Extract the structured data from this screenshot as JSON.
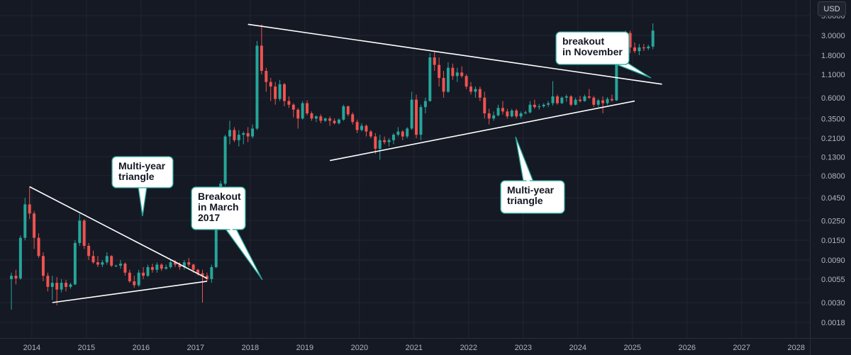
{
  "currency": "USD",
  "colors": {
    "background": "#151924",
    "grid": "#222633",
    "up": "#26a69a",
    "down": "#ef5350",
    "line": "#ffffff",
    "axis_text": "#b2b5be",
    "callout_bg": "#ffffff",
    "callout_border": "#26a69a"
  },
  "annotations": [
    {
      "lines": [
        "Multi-year",
        "triangle"
      ]
    },
    {
      "lines": [
        "Breakout",
        "in March",
        "2017"
      ]
    },
    {
      "lines": [
        "Multi-year",
        "triangle"
      ]
    },
    {
      "lines": [
        "breakout",
        "in November"
      ]
    }
  ],
  "chart_data": {
    "type": "candlestick",
    "interval": "1 month",
    "y_scale": "log",
    "ylim": [
      0.0012,
      7.5
    ],
    "xlim": [
      "2013-06",
      "2028-04"
    ],
    "grid": true,
    "legend": "none",
    "x_ticks": [
      "2014",
      "2015",
      "2016",
      "2017",
      "2018",
      "2019",
      "2020",
      "2021",
      "2022",
      "2023",
      "2024",
      "2025",
      "2026",
      "2027",
      "2028"
    ],
    "y_ticks": [
      "5.0000",
      "3.0000",
      "1.8000",
      "1.1000",
      "0.6000",
      "0.3500",
      "0.2100",
      "0.1300",
      "0.0800",
      "0.0450",
      "0.0250",
      "0.0150",
      "0.0090",
      "0.0055",
      "0.0030",
      "0.0018"
    ],
    "series": [
      {
        "start": "2013-08",
        "values": [
          [
            0.0055,
            0.0065,
            0.0025,
            0.006
          ],
          [
            0.006,
            0.007,
            0.0048,
            0.0056
          ],
          [
            0.0056,
            0.017,
            0.0054,
            0.016
          ],
          [
            0.016,
            0.045,
            0.015,
            0.038
          ],
          [
            0.038,
            0.06,
            0.026,
            0.03
          ],
          [
            0.03,
            0.032,
            0.012,
            0.016
          ],
          [
            0.016,
            0.018,
            0.0095,
            0.01
          ],
          [
            0.01,
            0.011,
            0.0052,
            0.006
          ],
          [
            0.006,
            0.0065,
            0.004,
            0.0045
          ],
          [
            0.0045,
            0.006,
            0.0032,
            0.005
          ],
          [
            0.005,
            0.0058,
            0.0028,
            0.0042
          ],
          [
            0.0042,
            0.0055,
            0.0039,
            0.005
          ],
          [
            0.005,
            0.0054,
            0.004,
            0.0045
          ],
          [
            0.0045,
            0.005,
            0.0043,
            0.0048
          ],
          [
            0.0048,
            0.015,
            0.0047,
            0.014
          ],
          [
            0.014,
            0.03,
            0.013,
            0.025
          ],
          [
            0.025,
            0.026,
            0.012,
            0.013
          ],
          [
            0.013,
            0.014,
            0.009,
            0.01
          ],
          [
            0.01,
            0.0115,
            0.0082,
            0.0085
          ],
          [
            0.0085,
            0.01,
            0.0075,
            0.008
          ],
          [
            0.008,
            0.009,
            0.0075,
            0.0085
          ],
          [
            0.0085,
            0.011,
            0.008,
            0.01
          ],
          [
            0.01,
            0.0102,
            0.0075,
            0.0078
          ],
          [
            0.0078,
            0.008,
            0.0075,
            0.0078
          ],
          [
            0.0078,
            0.009,
            0.0072,
            0.0082
          ],
          [
            0.0082,
            0.0085,
            0.006,
            0.0065
          ],
          [
            0.0065,
            0.007,
            0.005,
            0.0052
          ],
          [
            0.0052,
            0.006,
            0.0044,
            0.0047
          ],
          [
            0.0047,
            0.007,
            0.0045,
            0.0065
          ],
          [
            0.0065,
            0.0075,
            0.0055,
            0.006
          ],
          [
            0.006,
            0.008,
            0.0058,
            0.0075
          ],
          [
            0.0075,
            0.0082,
            0.0065,
            0.007
          ],
          [
            0.007,
            0.0085,
            0.0065,
            0.008
          ],
          [
            0.008,
            0.0083,
            0.0068,
            0.0072
          ],
          [
            0.0072,
            0.008,
            0.007,
            0.0075
          ],
          [
            0.0075,
            0.009,
            0.0072,
            0.0085
          ],
          [
            0.0085,
            0.009,
            0.0075,
            0.008
          ],
          [
            0.008,
            0.0085,
            0.007,
            0.0075
          ],
          [
            0.0075,
            0.009,
            0.007,
            0.0085
          ],
          [
            0.0085,
            0.0095,
            0.0075,
            0.008
          ],
          [
            0.008,
            0.0082,
            0.0065,
            0.007
          ],
          [
            0.007,
            0.0072,
            0.006,
            0.0064
          ],
          [
            0.0064,
            0.007,
            0.003,
            0.006
          ],
          [
            0.006,
            0.0065,
            0.0052,
            0.0055
          ],
          [
            0.0055,
            0.008,
            0.005,
            0.0075
          ],
          [
            0.0075,
            0.03,
            0.0073,
            0.028
          ],
          [
            0.028,
            0.07,
            0.026,
            0.065
          ],
          [
            0.065,
            0.23,
            0.062,
            0.22
          ],
          [
            0.22,
            0.33,
            0.18,
            0.26
          ],
          [
            0.26,
            0.28,
            0.19,
            0.2
          ],
          [
            0.2,
            0.26,
            0.17,
            0.23
          ],
          [
            0.23,
            0.25,
            0.18,
            0.24
          ],
          [
            0.24,
            0.28,
            0.19,
            0.22
          ],
          [
            0.22,
            0.3,
            0.21,
            0.27
          ],
          [
            0.27,
            2.6,
            0.26,
            2.3
          ],
          [
            2.3,
            4.0,
            1.1,
            1.2
          ],
          [
            1.2,
            1.3,
            0.7,
            0.9
          ],
          [
            0.9,
            1.0,
            0.55,
            0.8
          ],
          [
            0.8,
            0.9,
            0.5,
            0.58
          ],
          [
            0.58,
            0.95,
            0.55,
            0.85
          ],
          [
            0.85,
            0.88,
            0.48,
            0.55
          ],
          [
            0.55,
            0.62,
            0.46,
            0.5
          ],
          [
            0.5,
            0.52,
            0.36,
            0.44
          ],
          [
            0.44,
            0.46,
            0.27,
            0.35
          ],
          [
            0.35,
            0.55,
            0.34,
            0.52
          ],
          [
            0.52,
            0.56,
            0.38,
            0.4
          ],
          [
            0.4,
            0.42,
            0.33,
            0.35
          ],
          [
            0.35,
            0.38,
            0.32,
            0.37
          ],
          [
            0.37,
            0.39,
            0.31,
            0.33
          ],
          [
            0.33,
            0.36,
            0.32,
            0.35
          ],
          [
            0.35,
            0.37,
            0.29,
            0.33
          ],
          [
            0.33,
            0.35,
            0.3,
            0.31
          ],
          [
            0.31,
            0.35,
            0.3,
            0.34
          ],
          [
            0.34,
            0.5,
            0.33,
            0.48
          ],
          [
            0.48,
            0.49,
            0.37,
            0.39
          ],
          [
            0.39,
            0.41,
            0.3,
            0.32
          ],
          [
            0.32,
            0.34,
            0.24,
            0.26
          ],
          [
            0.26,
            0.31,
            0.25,
            0.29
          ],
          [
            0.29,
            0.3,
            0.22,
            0.25
          ],
          [
            0.25,
            0.26,
            0.21,
            0.22
          ],
          [
            0.22,
            0.24,
            0.14,
            0.16
          ],
          [
            0.16,
            0.23,
            0.12,
            0.2
          ],
          [
            0.2,
            0.22,
            0.18,
            0.19
          ],
          [
            0.19,
            0.21,
            0.17,
            0.2
          ],
          [
            0.2,
            0.24,
            0.18,
            0.23
          ],
          [
            0.23,
            0.28,
            0.22,
            0.25
          ],
          [
            0.25,
            0.26,
            0.2,
            0.22
          ],
          [
            0.22,
            0.28,
            0.21,
            0.27
          ],
          [
            0.27,
            0.7,
            0.26,
            0.57
          ],
          [
            0.57,
            0.65,
            0.21,
            0.23
          ],
          [
            0.23,
            0.5,
            0.2,
            0.47
          ],
          [
            0.47,
            0.6,
            0.4,
            0.55
          ],
          [
            0.55,
            1.9,
            0.54,
            1.7
          ],
          [
            1.7,
            2.0,
            1.2,
            1.4
          ],
          [
            1.4,
            1.7,
            0.8,
            1.0
          ],
          [
            1.0,
            1.2,
            0.6,
            0.7
          ],
          [
            0.7,
            1.5,
            0.68,
            1.3
          ],
          [
            1.3,
            1.45,
            0.95,
            1.05
          ],
          [
            1.05,
            1.3,
            0.9,
            1.15
          ],
          [
            1.15,
            1.35,
            1.0,
            1.05
          ],
          [
            1.05,
            1.1,
            0.75,
            0.8
          ],
          [
            0.8,
            0.9,
            0.65,
            0.7
          ],
          [
            0.7,
            0.8,
            0.6,
            0.75
          ],
          [
            0.75,
            0.8,
            0.55,
            0.6
          ],
          [
            0.6,
            0.7,
            0.35,
            0.4
          ],
          [
            0.4,
            0.45,
            0.3,
            0.35
          ],
          [
            0.35,
            0.42,
            0.33,
            0.38
          ],
          [
            0.38,
            0.5,
            0.37,
            0.46
          ],
          [
            0.46,
            0.55,
            0.39,
            0.42
          ],
          [
            0.42,
            0.45,
            0.35,
            0.37
          ],
          [
            0.37,
            0.45,
            0.36,
            0.43
          ],
          [
            0.43,
            0.45,
            0.35,
            0.37
          ],
          [
            0.37,
            0.42,
            0.35,
            0.4
          ],
          [
            0.4,
            0.43,
            0.39,
            0.41
          ],
          [
            0.41,
            0.55,
            0.4,
            0.5
          ],
          [
            0.5,
            0.57,
            0.45,
            0.47
          ],
          [
            0.47,
            0.51,
            0.44,
            0.48
          ],
          [
            0.48,
            0.52,
            0.46,
            0.5
          ],
          [
            0.5,
            0.55,
            0.47,
            0.52
          ],
          [
            0.52,
            0.92,
            0.49,
            0.62
          ],
          [
            0.62,
            0.65,
            0.5,
            0.52
          ],
          [
            0.52,
            0.62,
            0.51,
            0.6
          ],
          [
            0.6,
            0.65,
            0.54,
            0.62
          ],
          [
            0.62,
            0.64,
            0.48,
            0.5
          ],
          [
            0.5,
            0.6,
            0.49,
            0.57
          ],
          [
            0.57,
            0.63,
            0.53,
            0.55
          ],
          [
            0.55,
            0.65,
            0.54,
            0.62
          ],
          [
            0.62,
            0.75,
            0.58,
            0.6
          ],
          [
            0.6,
            0.63,
            0.47,
            0.5
          ],
          [
            0.5,
            0.58,
            0.47,
            0.56
          ],
          [
            0.56,
            0.62,
            0.4,
            0.52
          ],
          [
            0.52,
            0.61,
            0.5,
            0.58
          ],
          [
            0.58,
            0.65,
            0.54,
            0.56
          ],
          [
            0.56,
            1.9,
            0.55,
            1.7
          ],
          [
            1.7,
            3.0,
            1.6,
            2.4
          ],
          [
            2.4,
            3.4,
            2.3,
            3.2
          ],
          [
            3.2,
            3.4,
            1.9,
            2.2
          ],
          [
            2.2,
            2.5,
            1.9,
            2.0
          ],
          [
            2.0,
            2.4,
            1.8,
            2.2
          ],
          [
            2.2,
            2.4,
            2.0,
            2.15
          ],
          [
            2.15,
            2.35,
            2.05,
            2.25
          ],
          [
            2.25,
            4.1,
            2.1,
            3.4
          ]
        ]
      }
    ]
  }
}
